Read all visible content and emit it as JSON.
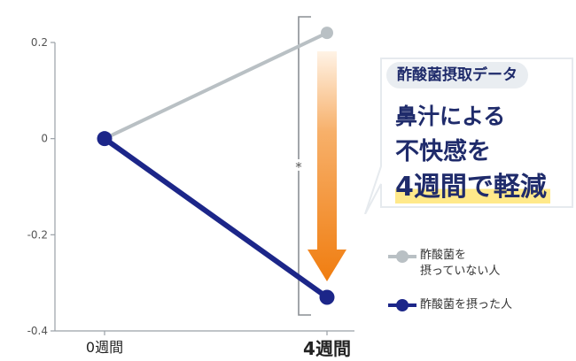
{
  "chart_data": {
    "type": "line",
    "categories": [
      "0週間",
      "4週間"
    ],
    "series": [
      {
        "name": "酢酸菌を摂っていない人",
        "values": [
          0,
          0.22
        ],
        "color": "#b9c0c4"
      },
      {
        "name": "酢酸菌を摂った人",
        "values": [
          0,
          -0.33
        ],
        "color": "#1c2689"
      }
    ],
    "yticks": [
      "0.2",
      "0",
      "-0.2",
      "-0.4"
    ],
    "ylim": [
      -0.4,
      0.2
    ],
    "significance_mark": "*",
    "grid": false,
    "legend_position": "right"
  },
  "callout": {
    "tag": "酢酸菌摂取データ",
    "line1": "鼻汁による",
    "line2": "不快感を",
    "line3": "4週間で軽減"
  },
  "legend": {
    "item1_line1": "酢酸菌を",
    "item1_line2": "摂っていない人",
    "item2": "酢酸菌を摂った人"
  },
  "colors": {
    "arrow": "#f07d10",
    "navy": "#1c2689",
    "gray": "#b9c0c4",
    "text_navy": "#1f2b6b"
  }
}
